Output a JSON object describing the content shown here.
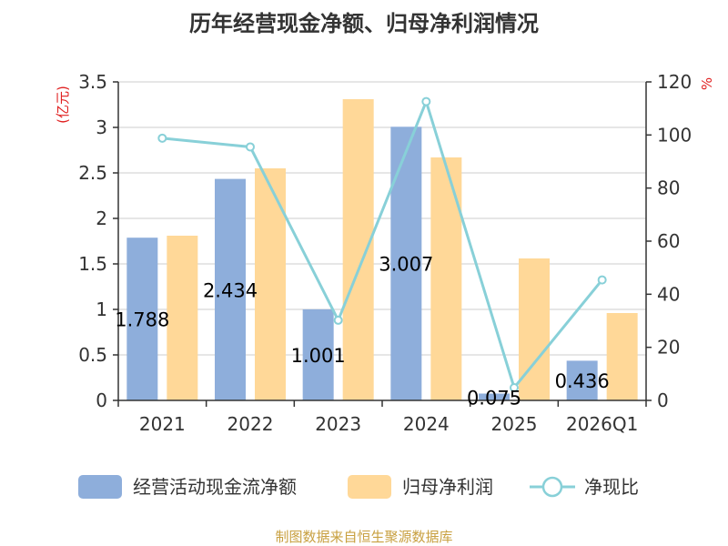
{
  "chart_data": {
    "type": "bar",
    "title": "历年经营现金净额、归母净利润情况",
    "categories": [
      "2021",
      "2022",
      "2023",
      "2024",
      "2025",
      "2026Q1"
    ],
    "y_left": {
      "unit": "(亿元)",
      "range": [
        0,
        3.5
      ],
      "ticks": [
        "0",
        "0.5",
        "1",
        "1.5",
        "2",
        "2.5",
        "3",
        "3.5"
      ]
    },
    "y_right": {
      "unit": "%",
      "range": [
        0,
        120
      ],
      "ticks": [
        "0",
        "20",
        "40",
        "60",
        "80",
        "100",
        "120"
      ]
    },
    "grid": true,
    "legend_position": "bottom",
    "series": [
      {
        "name": "经营活动现金流净额",
        "kind": "bar",
        "axis": "left",
        "color": "#8eaedb",
        "values": [
          1.788,
          2.434,
          1.001,
          3.007,
          0.075,
          0.436
        ],
        "labels": [
          "1.788",
          "2.434",
          "1.001",
          "3.007",
          "0.075",
          "0.436"
        ]
      },
      {
        "name": "归母净利润",
        "kind": "bar",
        "axis": "left",
        "color": "#ffd898",
        "values": [
          1.81,
          2.55,
          3.31,
          2.67,
          1.56,
          0.96
        ]
      },
      {
        "name": "净现比",
        "kind": "line",
        "axis": "right",
        "color": "#88d0d8",
        "values": [
          98.8,
          95.5,
          30.2,
          112.6,
          4.8,
          45.4
        ]
      }
    ]
  },
  "footer": {
    "source": "制图数据来自恒生聚源数据库"
  }
}
